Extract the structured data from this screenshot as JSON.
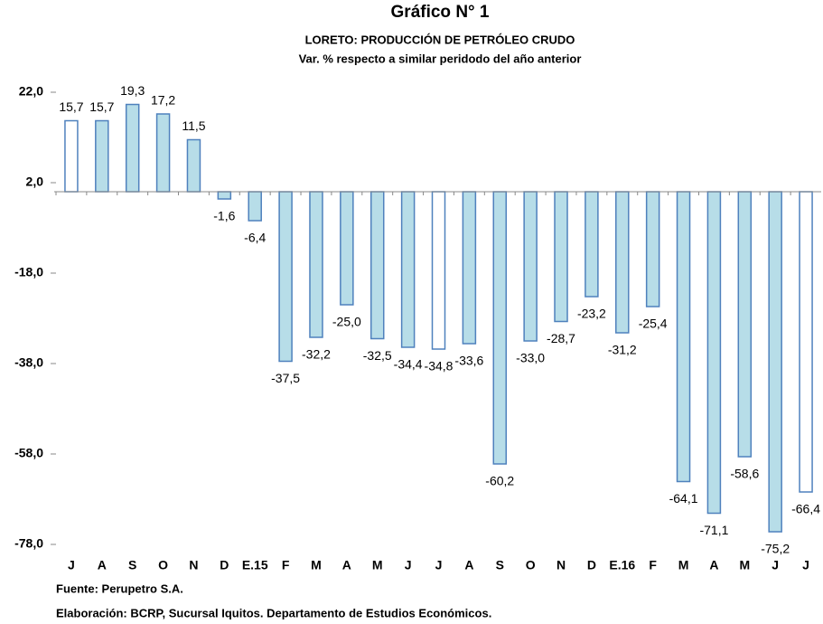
{
  "chart_data": {
    "type": "bar",
    "title": "Gráfico N° 1",
    "subtitle": "LORETO: PRODUCCIÓN DE PETRÓLEO CRUDO",
    "subtitle2": "Var. % respecto a similar peridodo del año anterior",
    "categories": [
      "J",
      "A",
      "S",
      "O",
      "N",
      "D",
      "E.15",
      "F",
      "M",
      "A",
      "M",
      "J",
      "J",
      "A",
      "S",
      "O",
      "N",
      "D",
      "E.16",
      "F",
      "M",
      "A",
      "M",
      "J",
      "J"
    ],
    "values": [
      15.7,
      15.7,
      19.3,
      17.2,
      11.5,
      -1.6,
      -6.4,
      -37.5,
      -32.2,
      -25.0,
      -32.5,
      -34.4,
      -34.8,
      -33.6,
      -60.2,
      -33.0,
      -28.7,
      -23.2,
      -31.2,
      -25.4,
      -64.1,
      -71.1,
      -58.6,
      -75.2,
      -66.4
    ],
    "value_labels": [
      "15,7",
      "15,7",
      "19,3",
      "17,2",
      "11,5",
      "-1,6",
      "-6,4",
      "-37,5",
      "-32,2",
      "-25,0",
      "-32,5",
      "-34,4",
      "-34,8",
      "-33,6",
      "-60,2",
      "-33,0",
      "-28,7",
      "-23,2",
      "-31,2",
      "-25,4",
      "-64,1",
      "-71,1",
      "-58,6",
      "-75,2",
      "-66,4"
    ],
    "colors": [
      "#ffffff",
      "#b7dde8",
      "#b7dde8",
      "#b7dde8",
      "#b7dde8",
      "#b7dde8",
      "#b7dde8",
      "#b7dde8",
      "#b7dde8",
      "#b7dde8",
      "#b7dde8",
      "#b7dde8",
      "#ffffff",
      "#b7dde8",
      "#b7dde8",
      "#b7dde8",
      "#b7dde8",
      "#b7dde8",
      "#b7dde8",
      "#b7dde8",
      "#b7dde8",
      "#b7dde8",
      "#b7dde8",
      "#b7dde8",
      "#ffffff"
    ],
    "edge_color": "#4f81bd",
    "ylim": [
      -78,
      22
    ],
    "yticks": [
      {
        "value": 22,
        "label": "22,0"
      },
      {
        "value": 2,
        "label": "2,0"
      },
      {
        "value": -18,
        "label": "-18,0"
      },
      {
        "value": -38,
        "label": "-38,0"
      },
      {
        "value": -58,
        "label": "-58,0"
      },
      {
        "value": -78,
        "label": "-78,0"
      }
    ],
    "grid": false,
    "source": "Fuente: Perupetro S.A.",
    "credit": "Elaboración: BCRP, Sucursal Iquitos. Departamento de Estudios Económicos."
  }
}
